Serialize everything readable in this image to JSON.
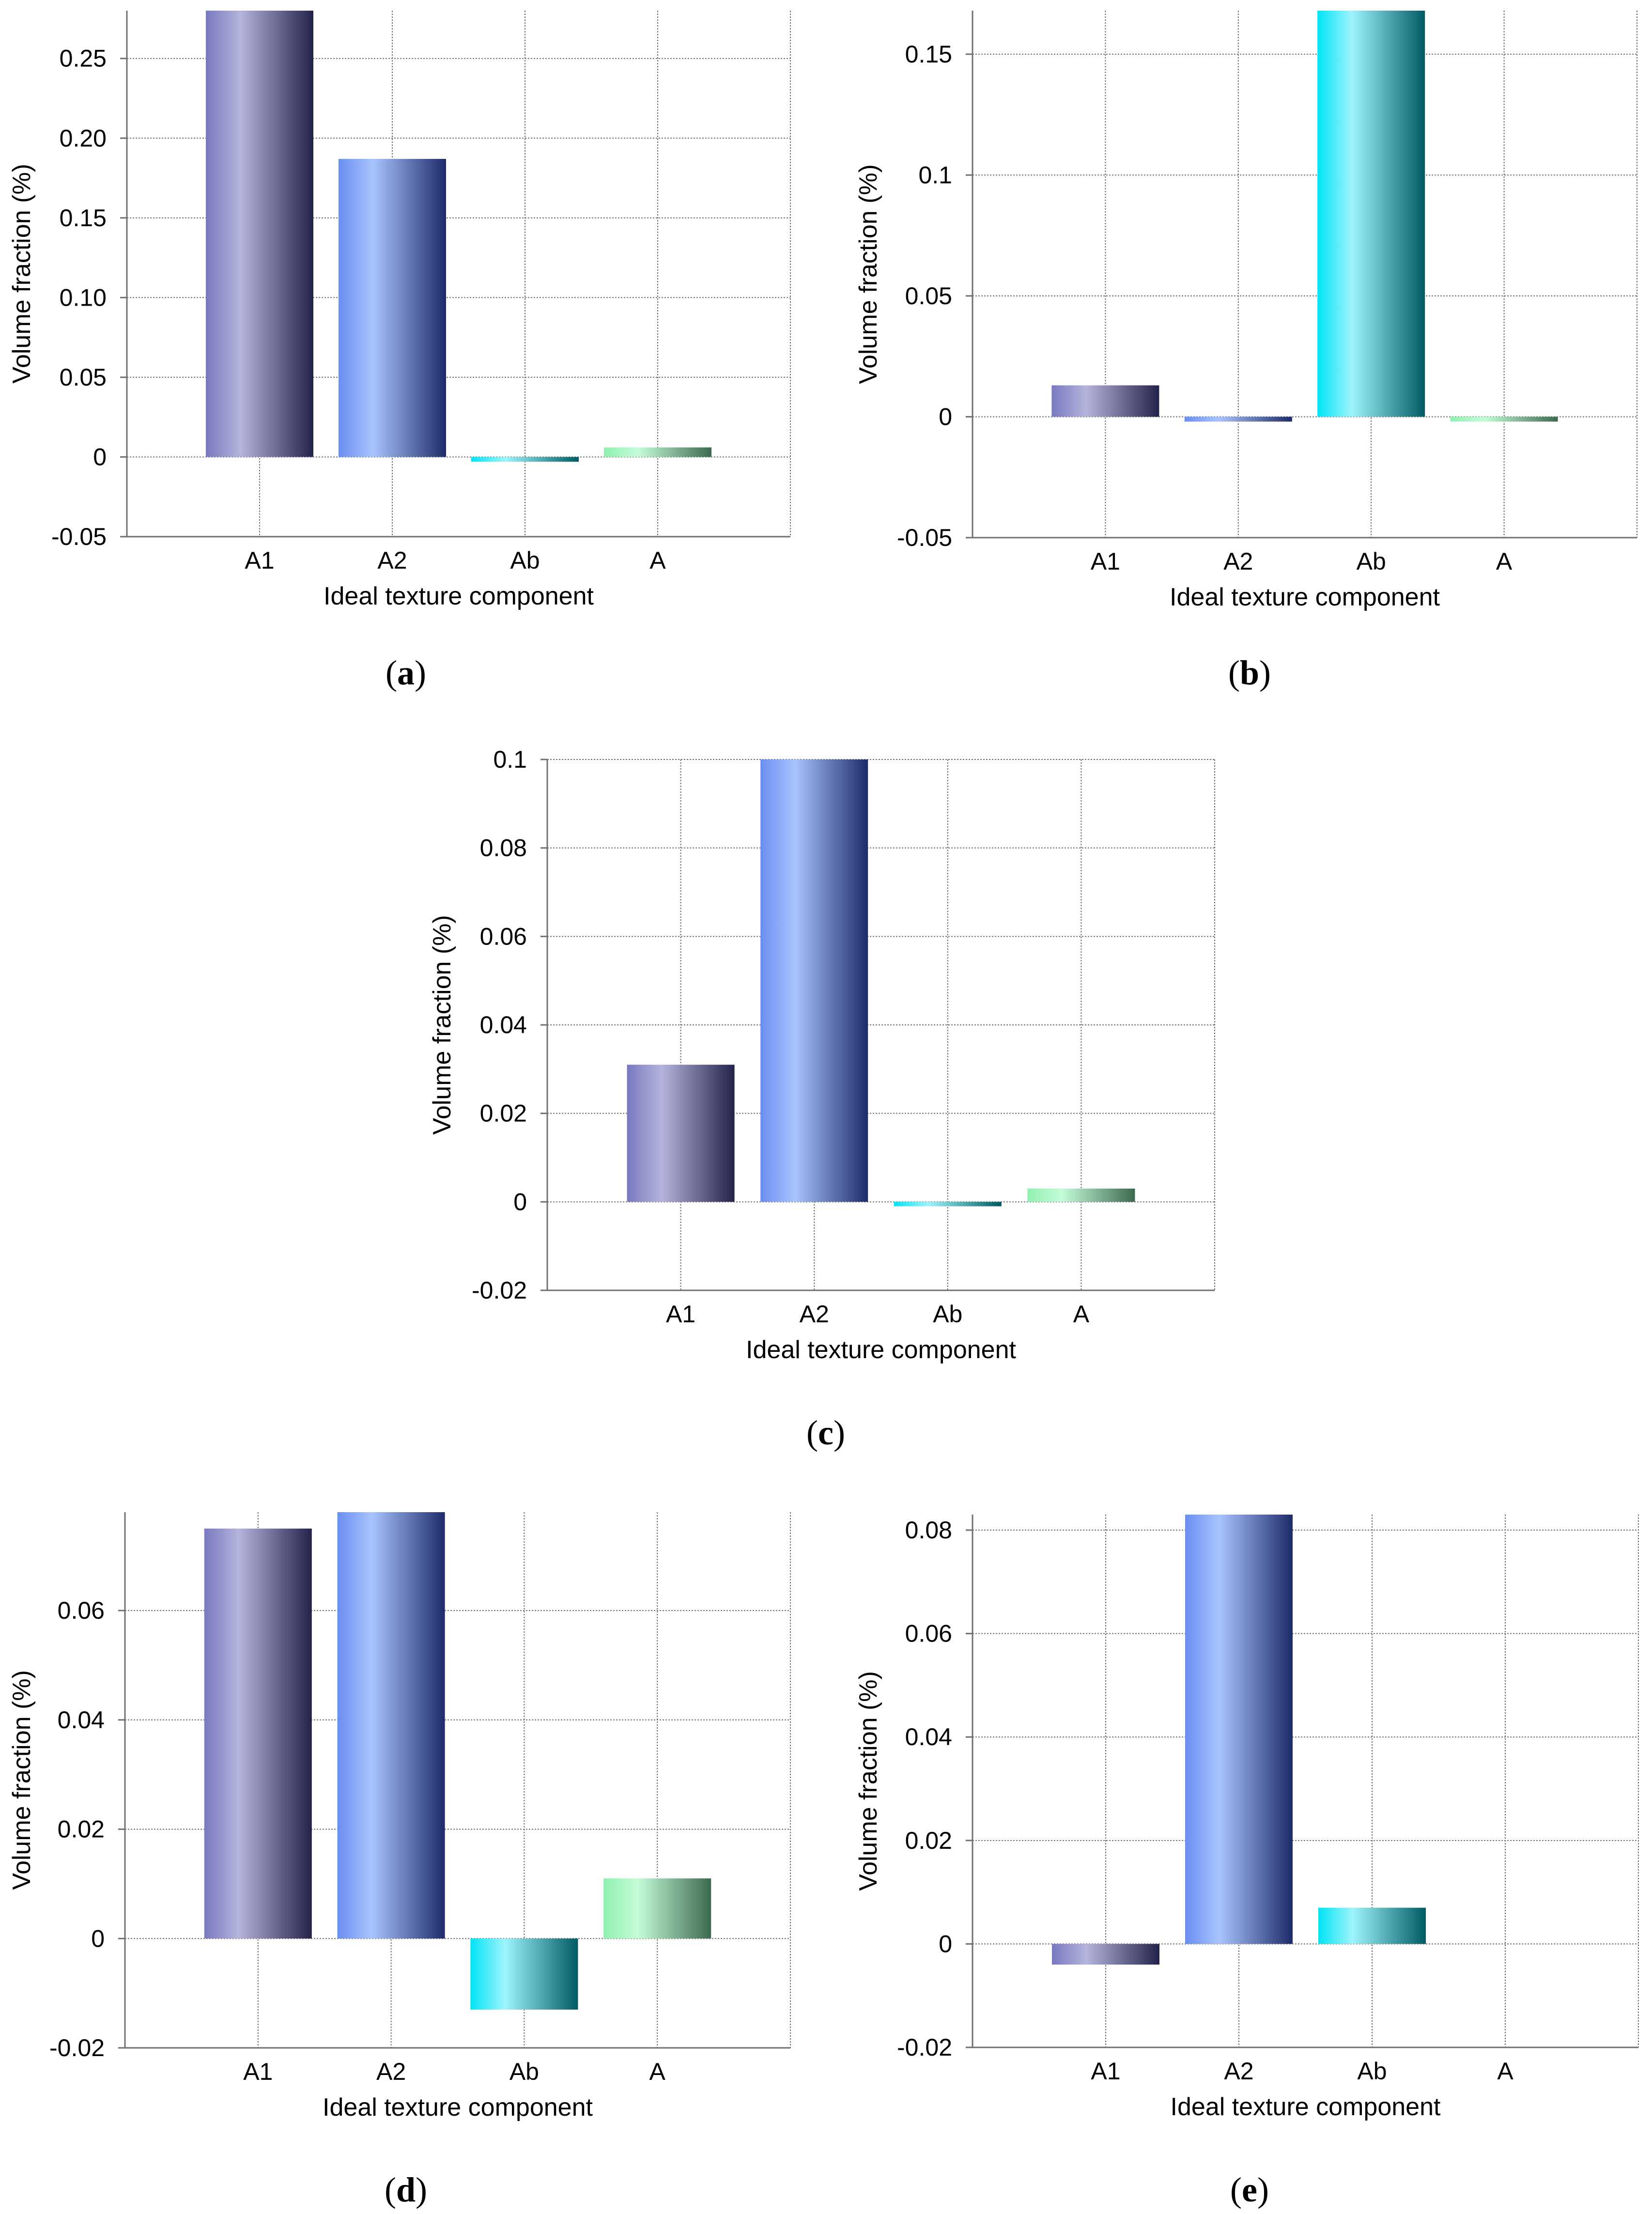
{
  "colors": {
    "A1": [
      "#7878c0",
      "#b4b4dc",
      "#22224a"
    ],
    "A2": [
      "#6a8ef0",
      "#a8c4ff",
      "#1e2a6a"
    ],
    "Ab": [
      "#00e4f4",
      "#9ef4fc",
      "#005a64"
    ],
    "A": [
      "#90f0b0",
      "#c4fcd8",
      "#3c6a4e"
    ]
  },
  "chart_data": [
    {
      "type": "bar",
      "panel": "a",
      "caption": "(a)",
      "categories": [
        "A1",
        "A2",
        "Ab",
        "A"
      ],
      "values": [
        0.28,
        0.187,
        -0.003,
        0.006
      ],
      "ylim": [
        -0.05,
        0.28
      ],
      "yticks": [
        -0.05,
        0,
        0.05,
        0.1,
        0.15,
        0.2,
        0.25
      ],
      "ytick_labels": [
        "-0.05",
        "0",
        "0.05",
        "0.10",
        "0.15",
        "0.20",
        "0.25"
      ],
      "xlabel": "Ideal texture component",
      "ylabel": "Volume fraction (%)"
    },
    {
      "type": "bar",
      "panel": "b",
      "caption": "(b)",
      "categories": [
        "A1",
        "A2",
        "Ab",
        "A"
      ],
      "values": [
        0.013,
        -0.002,
        0.168,
        -0.002
      ],
      "ylim": [
        -0.05,
        0.168
      ],
      "yticks": [
        -0.05,
        0,
        0.05,
        0.1,
        0.15
      ],
      "ytick_labels": [
        "-0.05",
        "0",
        "0.05",
        "0.1",
        "0.15"
      ],
      "xlabel": "Ideal texture component",
      "ylabel": "Volume fraction (%)"
    },
    {
      "type": "bar",
      "panel": "c",
      "caption": "(c)",
      "categories": [
        "A1",
        "A2",
        "Ab",
        "A"
      ],
      "values": [
        0.031,
        0.1,
        -0.001,
        0.003
      ],
      "ylim": [
        -0.02,
        0.1
      ],
      "yticks": [
        -0.02,
        0,
        0.02,
        0.04,
        0.06,
        0.08,
        0.1
      ],
      "ytick_labels": [
        "-0.02",
        "0",
        "0.02",
        "0.04",
        "0.06",
        "0.08",
        "0.1"
      ],
      "xlabel": "Ideal texture component",
      "ylabel": "Volume fraction (%)"
    },
    {
      "type": "bar",
      "panel": "d",
      "caption": "(d)",
      "categories": [
        "A1",
        "A2",
        "Ab",
        "A"
      ],
      "values": [
        0.075,
        0.078,
        -0.013,
        0.011
      ],
      "ylim": [
        -0.02,
        0.078
      ],
      "yticks": [
        -0.02,
        0,
        0.02,
        0.04,
        0.06
      ],
      "ytick_labels": [
        "-0.02",
        "0",
        "0.02",
        "0.04",
        "0.06"
      ],
      "xlabel": "Ideal texture component",
      "ylabel": "Volume fraction (%)"
    },
    {
      "type": "bar",
      "panel": "e",
      "caption": "(e)",
      "categories": [
        "A1",
        "A2",
        "Ab",
        "A"
      ],
      "values": [
        -0.004,
        0.083,
        0.007,
        0
      ],
      "ylim": [
        -0.02,
        0.083
      ],
      "yticks": [
        -0.02,
        0,
        0.02,
        0.04,
        0.06,
        0.08
      ],
      "ytick_labels": [
        "-0.02",
        "0",
        "0.02",
        "0.04",
        "0.06",
        "0.08"
      ],
      "xlabel": "Ideal texture component",
      "ylabel": "Volume fraction (%)"
    }
  ]
}
